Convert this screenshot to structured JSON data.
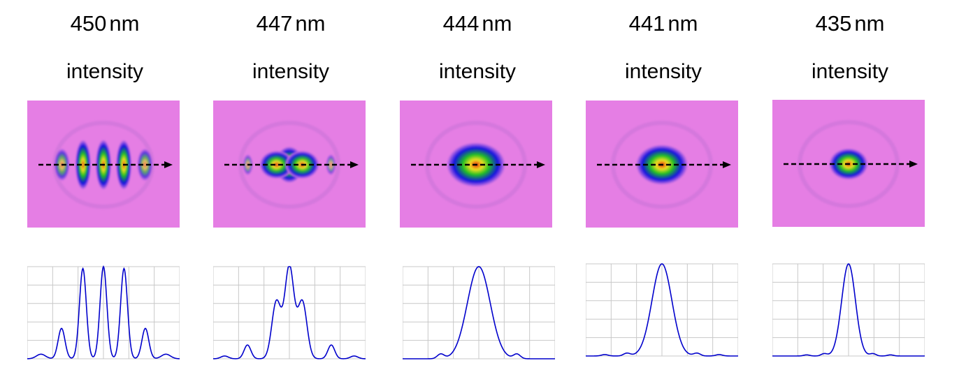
{
  "units": "nm",
  "colorbar_colors": {
    "background": "#e57ee4",
    "low": "#1010e0",
    "mid": "#20c020",
    "high": "#f0e020",
    "peak": "#e02010"
  },
  "line_color": "#0000cc",
  "grid_color": "#c8c8c8",
  "chart_data": [
    {
      "type": "line",
      "wavelength": "450",
      "map_label": "intensity",
      "peaks": [
        {
          "x": -0.55,
          "amp": 0.33,
          "width": 0.045
        },
        {
          "x": -0.27,
          "amp": 0.98,
          "width": 0.045
        },
        {
          "x": 0.0,
          "amp": 1.0,
          "width": 0.045
        },
        {
          "x": 0.27,
          "amp": 0.98,
          "width": 0.045
        },
        {
          "x": 0.55,
          "amp": 0.33,
          "width": 0.045
        },
        {
          "x": -0.82,
          "amp": 0.05,
          "width": 0.06
        },
        {
          "x": 0.82,
          "amp": 0.05,
          "width": 0.06
        }
      ],
      "xlim": [
        -1,
        1
      ],
      "ylim": [
        0,
        1
      ],
      "grid": true
    },
    {
      "type": "line",
      "wavelength": "447",
      "map_label": "intensity",
      "peaks": [
        {
          "x": 0.0,
          "amp": 1.0,
          "width": 0.06
        },
        {
          "x": -0.17,
          "amp": 0.62,
          "width": 0.06
        },
        {
          "x": 0.17,
          "amp": 0.62,
          "width": 0.06
        },
        {
          "x": -0.55,
          "amp": 0.15,
          "width": 0.045
        },
        {
          "x": 0.55,
          "amp": 0.15,
          "width": 0.045
        },
        {
          "x": -0.85,
          "amp": 0.03,
          "width": 0.05
        },
        {
          "x": 0.85,
          "amp": 0.03,
          "width": 0.05
        }
      ],
      "xlim": [
        -1,
        1
      ],
      "ylim": [
        0,
        1
      ],
      "grid": true
    },
    {
      "type": "line",
      "wavelength": "444",
      "map_label": "intensity",
      "peaks": [
        {
          "x": 0.0,
          "amp": 1.0,
          "width": 0.15
        },
        {
          "x": -0.5,
          "amp": 0.05,
          "width": 0.045
        },
        {
          "x": 0.5,
          "amp": 0.05,
          "width": 0.045
        }
      ],
      "xlim": [
        -1,
        1
      ],
      "ylim": [
        0,
        1
      ],
      "grid": true
    },
    {
      "type": "line",
      "wavelength": "441",
      "map_label": "intensity",
      "peaks": [
        {
          "x": 0.0,
          "amp": 1.0,
          "width": 0.13
        },
        {
          "x": -0.46,
          "amp": 0.03,
          "width": 0.045
        },
        {
          "x": 0.46,
          "amp": 0.03,
          "width": 0.045
        },
        {
          "x": -0.75,
          "amp": 0.015,
          "width": 0.045
        },
        {
          "x": 0.75,
          "amp": 0.015,
          "width": 0.045
        }
      ],
      "xlim": [
        -1,
        1
      ],
      "ylim": [
        0,
        1
      ],
      "grid": true
    },
    {
      "type": "line",
      "wavelength": "435",
      "map_label": "intensity",
      "peaks": [
        {
          "x": 0.0,
          "amp": 1.0,
          "width": 0.09
        },
        {
          "x": -0.32,
          "amp": 0.025,
          "width": 0.04
        },
        {
          "x": 0.32,
          "amp": 0.025,
          "width": 0.04
        },
        {
          "x": -0.55,
          "amp": 0.012,
          "width": 0.04
        },
        {
          "x": 0.55,
          "amp": 0.012,
          "width": 0.04
        }
      ],
      "xlim": [
        -1,
        1
      ],
      "ylim": [
        0,
        1
      ],
      "grid": true
    }
  ]
}
